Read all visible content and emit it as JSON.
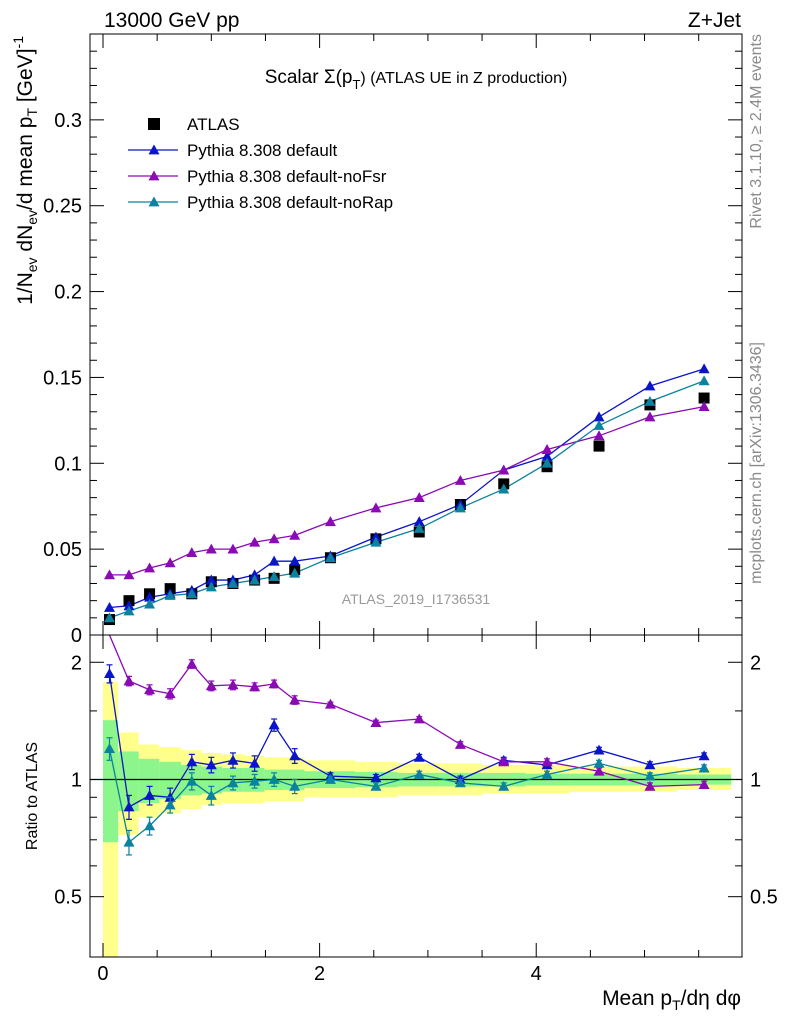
{
  "header": {
    "left": "13000 GeV pp",
    "right": "Z+Jet"
  },
  "side_labels": {
    "rivet": "Rivet 3.1.10, ≥ 2.4M events",
    "mcplots": "mcplots.cern.ch [arXiv:1306.3436]"
  },
  "watermark": "ATLAS_2019_I1736531",
  "colors": {
    "atlas": "#000000",
    "default": "#0a14c8",
    "noFsr": "#8a0ab4",
    "noRap": "#0a82a0",
    "band_inner": "#8cf58c",
    "band_outer": "#ffff8c"
  },
  "chart_data": [
    {
      "type": "scatter",
      "panel": "main",
      "title": "Scalar Σ(pT) (ATLAS UE in Z production)",
      "title_parts": {
        "pre": "Scalar Σ(p",
        "sub": "T",
        "post": ") (ATLAS UE in Z production)"
      },
      "ylabel": "1/Nev dNev/d mean pT [GeV]-1",
      "ylabel_parts": [
        "1/N",
        "ev",
        " dN",
        "ev",
        "/d mean p",
        "T",
        " [GeV]",
        "-1"
      ],
      "xlim": [
        -0.12,
        5.9
      ],
      "ylim": [
        0,
        0.35
      ],
      "yticks": [
        0,
        0.05,
        0.1,
        0.15,
        0.2,
        0.25,
        0.3
      ],
      "ytick_labels": [
        "0",
        "0.05",
        "0.1",
        "0.15",
        "0.2",
        "0.25",
        "0.3"
      ],
      "legend_position": "top-left",
      "x": [
        0.06,
        0.24,
        0.43,
        0.62,
        0.82,
        1.0,
        1.2,
        1.4,
        1.58,
        1.77,
        2.1,
        2.52,
        2.92,
        3.3,
        3.7,
        4.1,
        4.58,
        5.05,
        5.55
      ],
      "series": [
        {
          "name": "ATLAS",
          "marker": "square",
          "values": [
            0.009,
            0.02,
            0.024,
            0.027,
            0.024,
            0.031,
            0.03,
            0.032,
            0.033,
            0.038,
            0.045,
            0.056,
            0.06,
            0.076,
            0.088,
            0.098,
            0.11,
            0.134,
            0.138
          ]
        },
        {
          "name": "Pythia 8.308 default",
          "marker": "triangle",
          "values": [
            0.016,
            0.017,
            0.022,
            0.024,
            0.026,
            0.032,
            0.032,
            0.035,
            0.043,
            0.043,
            0.046,
            0.057,
            0.066,
            0.076,
            0.096,
            0.104,
            0.127,
            0.145,
            0.155
          ]
        },
        {
          "name": "Pythia 8.308 default-noFsr",
          "marker": "triangle",
          "values": [
            0.035,
            0.035,
            0.039,
            0.042,
            0.048,
            0.05,
            0.05,
            0.054,
            0.056,
            0.058,
            0.066,
            0.074,
            0.08,
            0.09,
            0.096,
            0.108,
            0.116,
            0.127,
            0.133
          ]
        },
        {
          "name": "Pythia 8.308 default-noRap",
          "marker": "triangle",
          "values": [
            0.01,
            0.014,
            0.018,
            0.023,
            0.024,
            0.028,
            0.03,
            0.032,
            0.034,
            0.036,
            0.045,
            0.054,
            0.062,
            0.074,
            0.085,
            0.1,
            0.122,
            0.136,
            0.148
          ]
        }
      ]
    },
    {
      "type": "scatter",
      "panel": "ratio",
      "ylabel": "Ratio to ATLAS",
      "xlabel": "Mean pT/dη dφ",
      "xlabel_parts": [
        "Mean p",
        "T",
        "/dη dφ"
      ],
      "xlim": [
        -0.12,
        5.9
      ],
      "ylim": [
        0.35,
        2.35
      ],
      "xticks": [
        0,
        2,
        4
      ],
      "xtick_labels": [
        "0",
        "2",
        "4"
      ],
      "yticks": [
        0.5,
        1,
        2
      ],
      "ytick_labels": [
        "0.5",
        "1",
        "2"
      ],
      "x": [
        0.06,
        0.24,
        0.43,
        0.62,
        0.82,
        1.0,
        1.2,
        1.4,
        1.58,
        1.77,
        2.1,
        2.52,
        2.92,
        3.3,
        3.7,
        4.1,
        4.58,
        5.05,
        5.55
      ],
      "bin_edges": [
        0.0,
        0.14,
        0.33,
        0.52,
        0.72,
        0.91,
        1.1,
        1.3,
        1.49,
        1.68,
        1.86,
        2.33,
        2.72,
        3.11,
        3.5,
        3.9,
        4.31,
        4.84,
        5.3,
        5.8
      ],
      "band_inner": [
        [
          0.69,
          1.42
        ],
        [
          0.83,
          1.18
        ],
        [
          0.87,
          1.13
        ],
        [
          0.89,
          1.11
        ],
        [
          0.91,
          1.09
        ],
        [
          0.92,
          1.08
        ],
        [
          0.93,
          1.07
        ],
        [
          0.93,
          1.07
        ],
        [
          0.94,
          1.06
        ],
        [
          0.94,
          1.06
        ],
        [
          0.95,
          1.05
        ],
        [
          0.955,
          1.045
        ],
        [
          0.96,
          1.04
        ],
        [
          0.96,
          1.04
        ],
        [
          0.96,
          1.04
        ],
        [
          0.965,
          1.035
        ],
        [
          0.965,
          1.035
        ],
        [
          0.965,
          1.035
        ],
        [
          0.97,
          1.03
        ]
      ],
      "band_outer": [
        [
          0.35,
          1.78
        ],
        [
          0.72,
          1.32
        ],
        [
          0.8,
          1.23
        ],
        [
          0.82,
          1.21
        ],
        [
          0.84,
          1.19
        ],
        [
          0.86,
          1.17
        ],
        [
          0.87,
          1.16
        ],
        [
          0.87,
          1.15
        ],
        [
          0.88,
          1.14
        ],
        [
          0.88,
          1.14
        ],
        [
          0.9,
          1.12
        ],
        [
          0.9,
          1.11
        ],
        [
          0.91,
          1.1
        ],
        [
          0.91,
          1.1
        ],
        [
          0.92,
          1.09
        ],
        [
          0.92,
          1.09
        ],
        [
          0.93,
          1.08
        ],
        [
          0.93,
          1.08
        ],
        [
          0.94,
          1.07
        ]
      ],
      "series": [
        {
          "name": "Pythia 8.308 default",
          "values": [
            1.87,
            0.85,
            0.91,
            0.9,
            1.11,
            1.09,
            1.12,
            1.1,
            1.38,
            1.15,
            1.02,
            1.01,
            1.14,
            1.0,
            1.12,
            1.09,
            1.19,
            1.09,
            1.15
          ],
          "errors": [
            0.1,
            0.06,
            0.05,
            0.05,
            0.05,
            0.05,
            0.05,
            0.05,
            0.05,
            0.05,
            0.02,
            0.02,
            0.02,
            0.02,
            0.02,
            0.02,
            0.02,
            0.02,
            0.02
          ]
        },
        {
          "name": "Pythia 8.308 default-noFsr",
          "values": [
            2.35,
            1.79,
            1.7,
            1.66,
            1.98,
            1.74,
            1.75,
            1.73,
            1.76,
            1.6,
            1.56,
            1.4,
            1.43,
            1.23,
            1.11,
            1.11,
            1.05,
            0.96,
            0.97
          ],
          "errors": [
            0.1,
            0.05,
            0.05,
            0.05,
            0.05,
            0.05,
            0.05,
            0.04,
            0.04,
            0.04,
            0.02,
            0.02,
            0.02,
            0.02,
            0.02,
            0.02,
            0.02,
            0.02,
            0.02
          ]
        },
        {
          "name": "Pythia 8.308 default-noRap",
          "values": [
            1.2,
            0.69,
            0.76,
            0.86,
            0.99,
            0.91,
            0.98,
            0.99,
            1.0,
            0.96,
            1.0,
            0.96,
            1.03,
            0.98,
            0.96,
            1.03,
            1.1,
            1.02,
            1.07
          ],
          "errors": [
            0.08,
            0.05,
            0.04,
            0.04,
            0.05,
            0.05,
            0.04,
            0.04,
            0.04,
            0.04,
            0.02,
            0.02,
            0.02,
            0.02,
            0.02,
            0.02,
            0.02,
            0.02,
            0.02
          ]
        }
      ]
    }
  ]
}
